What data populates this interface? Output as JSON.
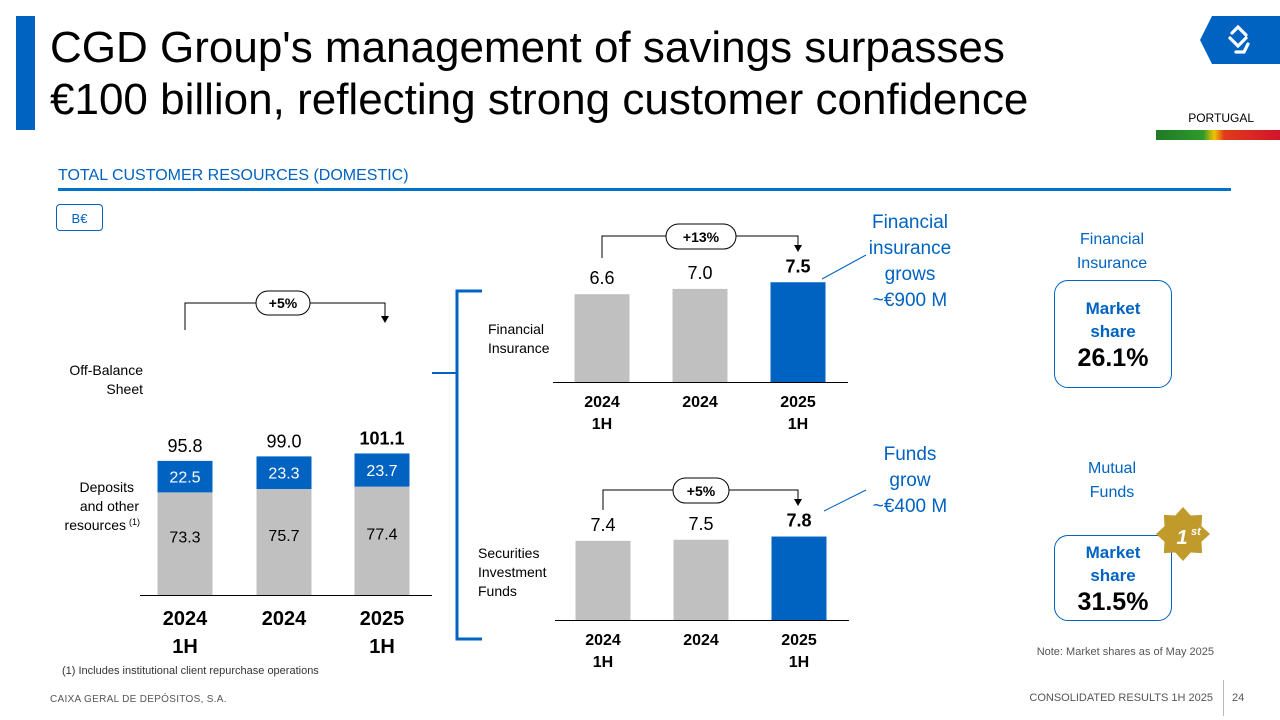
{
  "title": {
    "line1": "CGD Group's management of savings surpasses",
    "line2": "€100 billion, reflecting strong customer confidence"
  },
  "header": {
    "country": "PORTUGAL"
  },
  "section": {
    "title": "TOTAL CUSTOMER RESOURCES (DOMESTIC)",
    "unit": "B€"
  },
  "chart_data": [
    {
      "type": "bar",
      "stacked": true,
      "title": "Total Customer Resources (Domestic)",
      "unit": "B€",
      "categories": [
        [
          "2024",
          "1H"
        ],
        [
          "2024"
        ],
        [
          "2025",
          "1H"
        ]
      ],
      "series": [
        {
          "name": "Deposits and other resources",
          "footnote_mark": "(1)",
          "values": [
            73.3,
            75.7,
            77.4
          ],
          "color": "#c0c0c0"
        },
        {
          "name": "Off-Balance Sheet",
          "values": [
            22.5,
            23.3,
            23.7
          ],
          "color": "#0063c1"
        }
      ],
      "totals": [
        95.8,
        99.0,
        101.1
      ],
      "total_labels": [
        "95.8",
        "99.0",
        "101.1"
      ],
      "series_value_labels": [
        [
          "73.3",
          "75.7",
          "77.4"
        ],
        [
          "22.5",
          "23.3",
          "23.7"
        ]
      ],
      "growth_label": "+5%",
      "ylim": [
        0,
        110
      ]
    },
    {
      "type": "bar",
      "title": "Financial Insurance",
      "categories": [
        [
          "2024",
          "1H"
        ],
        [
          "2024"
        ],
        [
          "2025",
          "1H"
        ]
      ],
      "values": [
        6.6,
        7.0,
        7.5
      ],
      "value_labels": [
        "6.6",
        "7.0",
        "7.5"
      ],
      "colors": [
        "#c0c0c0",
        "#c0c0c0",
        "#0063c1"
      ],
      "growth_label": "+13%",
      "ylim": [
        0,
        9.5
      ]
    },
    {
      "type": "bar",
      "title": "Securities Investment Funds",
      "categories": [
        [
          "2024",
          "1H"
        ],
        [
          "2024"
        ],
        [
          "2025",
          "1H"
        ]
      ],
      "values": [
        7.4,
        7.5,
        7.8
      ],
      "value_labels": [
        "7.4",
        "7.5",
        "7.8"
      ],
      "colors": [
        "#c0c0c0",
        "#c0c0c0",
        "#0063c1"
      ],
      "growth_label": "+5%",
      "ylim": [
        0,
        9.1
      ]
    }
  ],
  "labels": {
    "off_balance": [
      "Off-Balance",
      "Sheet"
    ],
    "deposits": [
      "Deposits",
      "and other",
      "resources"
    ],
    "footnote_mark": "(1)",
    "fin_insurance": [
      "Financial",
      "Insurance"
    ],
    "sec_funds": [
      "Securities",
      "Investment",
      "Funds"
    ]
  },
  "callouts": {
    "insurance": [
      "Financial",
      "insurance",
      "grows",
      "~€900 M"
    ],
    "funds": [
      "Funds",
      "grow",
      "~€400 M"
    ]
  },
  "market_share": {
    "insurance": {
      "label": [
        "Financial",
        "Insurance"
      ],
      "box_label": [
        "Market",
        "share"
      ],
      "value": "26.1%"
    },
    "funds": {
      "label": [
        "Mutual",
        "Funds"
      ],
      "box_label": [
        "Market",
        "share"
      ],
      "value": "31.5%",
      "badge_num": "1",
      "badge_sup": "st"
    }
  },
  "note": "Note: Market shares as of May 2025",
  "footnote": "(1) Includes institutional client repurchase operations",
  "footer": {
    "company": "CAIXA GERAL DE DEPÓSITOS, S.A.",
    "report": "CONSOLIDATED RESULTS 1H 2025",
    "page": "24"
  },
  "colors": {
    "accent": "#0063c1",
    "gray_bar": "#c0c0c0",
    "gold": "#c09a2a"
  }
}
